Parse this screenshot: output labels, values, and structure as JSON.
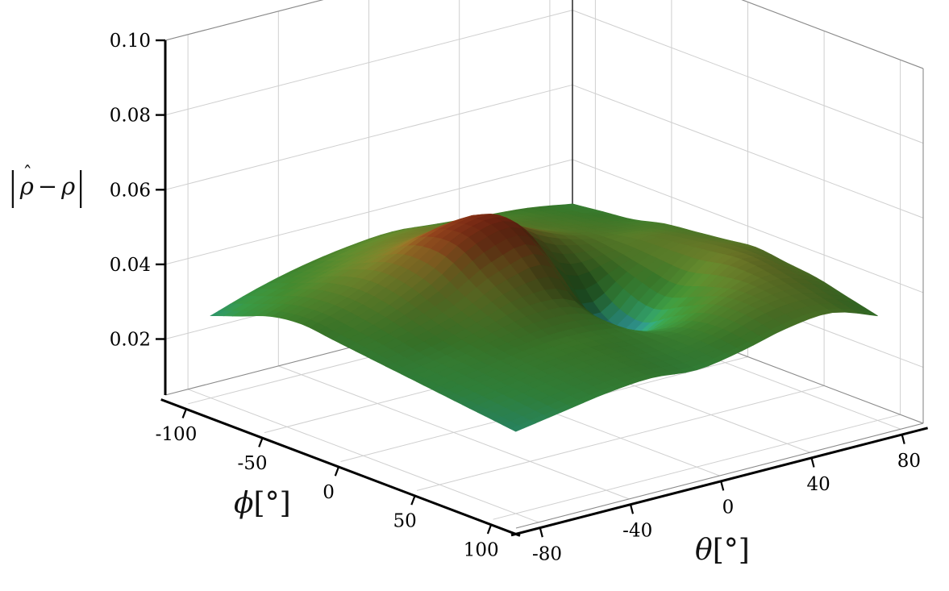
{
  "chart_data": {
    "type": "3d-surface",
    "title": "",
    "description": "3D surface of absolute estimation error |rho-hat minus rho| over angles phi and theta",
    "z_axis": {
      "label": "|ρ̂ − ρ|",
      "label_parts": {
        "bar": "|",
        "hat": "ˆ",
        "rho_est": "ρ",
        "minus": "−",
        "rho": "ρ"
      },
      "ticks": [
        0.02,
        0.04,
        0.06,
        0.08,
        0.1
      ],
      "tick_labels": [
        "0.02",
        "0.04",
        "0.06",
        "0.08",
        "0.10"
      ],
      "lim": [
        0.005,
        0.1
      ]
    },
    "phi_axis": {
      "symbol": "ϕ",
      "unit": "[°]",
      "ticks": [
        -100,
        -50,
        0,
        50,
        100
      ],
      "tick_labels": [
        "-100",
        "-50",
        "0",
        "50",
        "100"
      ],
      "lim": [
        -115,
        115
      ]
    },
    "theta_axis": {
      "symbol": "θ",
      "unit": "[°]",
      "ticks": [
        -80,
        -40,
        0,
        40,
        80
      ],
      "tick_labels": [
        "-80",
        "-40",
        "0",
        "40",
        "80"
      ],
      "lim": [
        -90,
        90
      ]
    },
    "grid": "on",
    "surface": {
      "phi": [
        -100,
        -80,
        -60,
        -40,
        -20,
        0,
        20,
        40,
        60,
        80,
        100
      ],
      "theta": [
        -80,
        -60,
        -40,
        -20,
        0,
        20,
        40,
        60,
        80
      ],
      "z": [
        [
          0.027,
          0.031,
          0.034,
          0.036,
          0.037,
          0.036,
          0.035,
          0.034,
          0.032
        ],
        [
          0.03,
          0.034,
          0.037,
          0.04,
          0.041,
          0.039,
          0.037,
          0.035,
          0.033
        ],
        [
          0.033,
          0.037,
          0.041,
          0.044,
          0.044,
          0.041,
          0.038,
          0.036,
          0.034
        ],
        [
          0.034,
          0.038,
          0.044,
          0.05,
          0.051,
          0.044,
          0.039,
          0.037,
          0.036
        ],
        [
          0.033,
          0.037,
          0.043,
          0.051,
          0.052,
          0.038,
          0.037,
          0.039,
          0.037
        ],
        [
          0.032,
          0.035,
          0.039,
          0.045,
          0.046,
          0.027,
          0.034,
          0.04,
          0.038
        ],
        [
          0.031,
          0.033,
          0.036,
          0.039,
          0.037,
          0.024,
          0.032,
          0.041,
          0.039
        ],
        [
          0.03,
          0.032,
          0.034,
          0.035,
          0.034,
          0.029,
          0.035,
          0.042,
          0.038
        ],
        [
          0.029,
          0.031,
          0.033,
          0.034,
          0.033,
          0.033,
          0.038,
          0.041,
          0.037
        ],
        [
          0.028,
          0.03,
          0.032,
          0.033,
          0.032,
          0.034,
          0.038,
          0.039,
          0.035
        ],
        [
          0.027,
          0.029,
          0.031,
          0.032,
          0.031,
          0.033,
          0.036,
          0.037,
          0.033
        ]
      ]
    },
    "colormap": [
      {
        "z": 0.02,
        "color": "#2b5ea7"
      },
      {
        "z": 0.0235,
        "color": "#2e86a8"
      },
      {
        "z": 0.027,
        "color": "#2f9b72"
      },
      {
        "z": 0.03,
        "color": "#379544"
      },
      {
        "z": 0.034,
        "color": "#42882f"
      },
      {
        "z": 0.038,
        "color": "#5d862c"
      },
      {
        "z": 0.042,
        "color": "#76802a"
      },
      {
        "z": 0.046,
        "color": "#8a6a24"
      },
      {
        "z": 0.0495,
        "color": "#8f431c"
      },
      {
        "z": 0.054,
        "color": "#7c2413"
      }
    ]
  }
}
